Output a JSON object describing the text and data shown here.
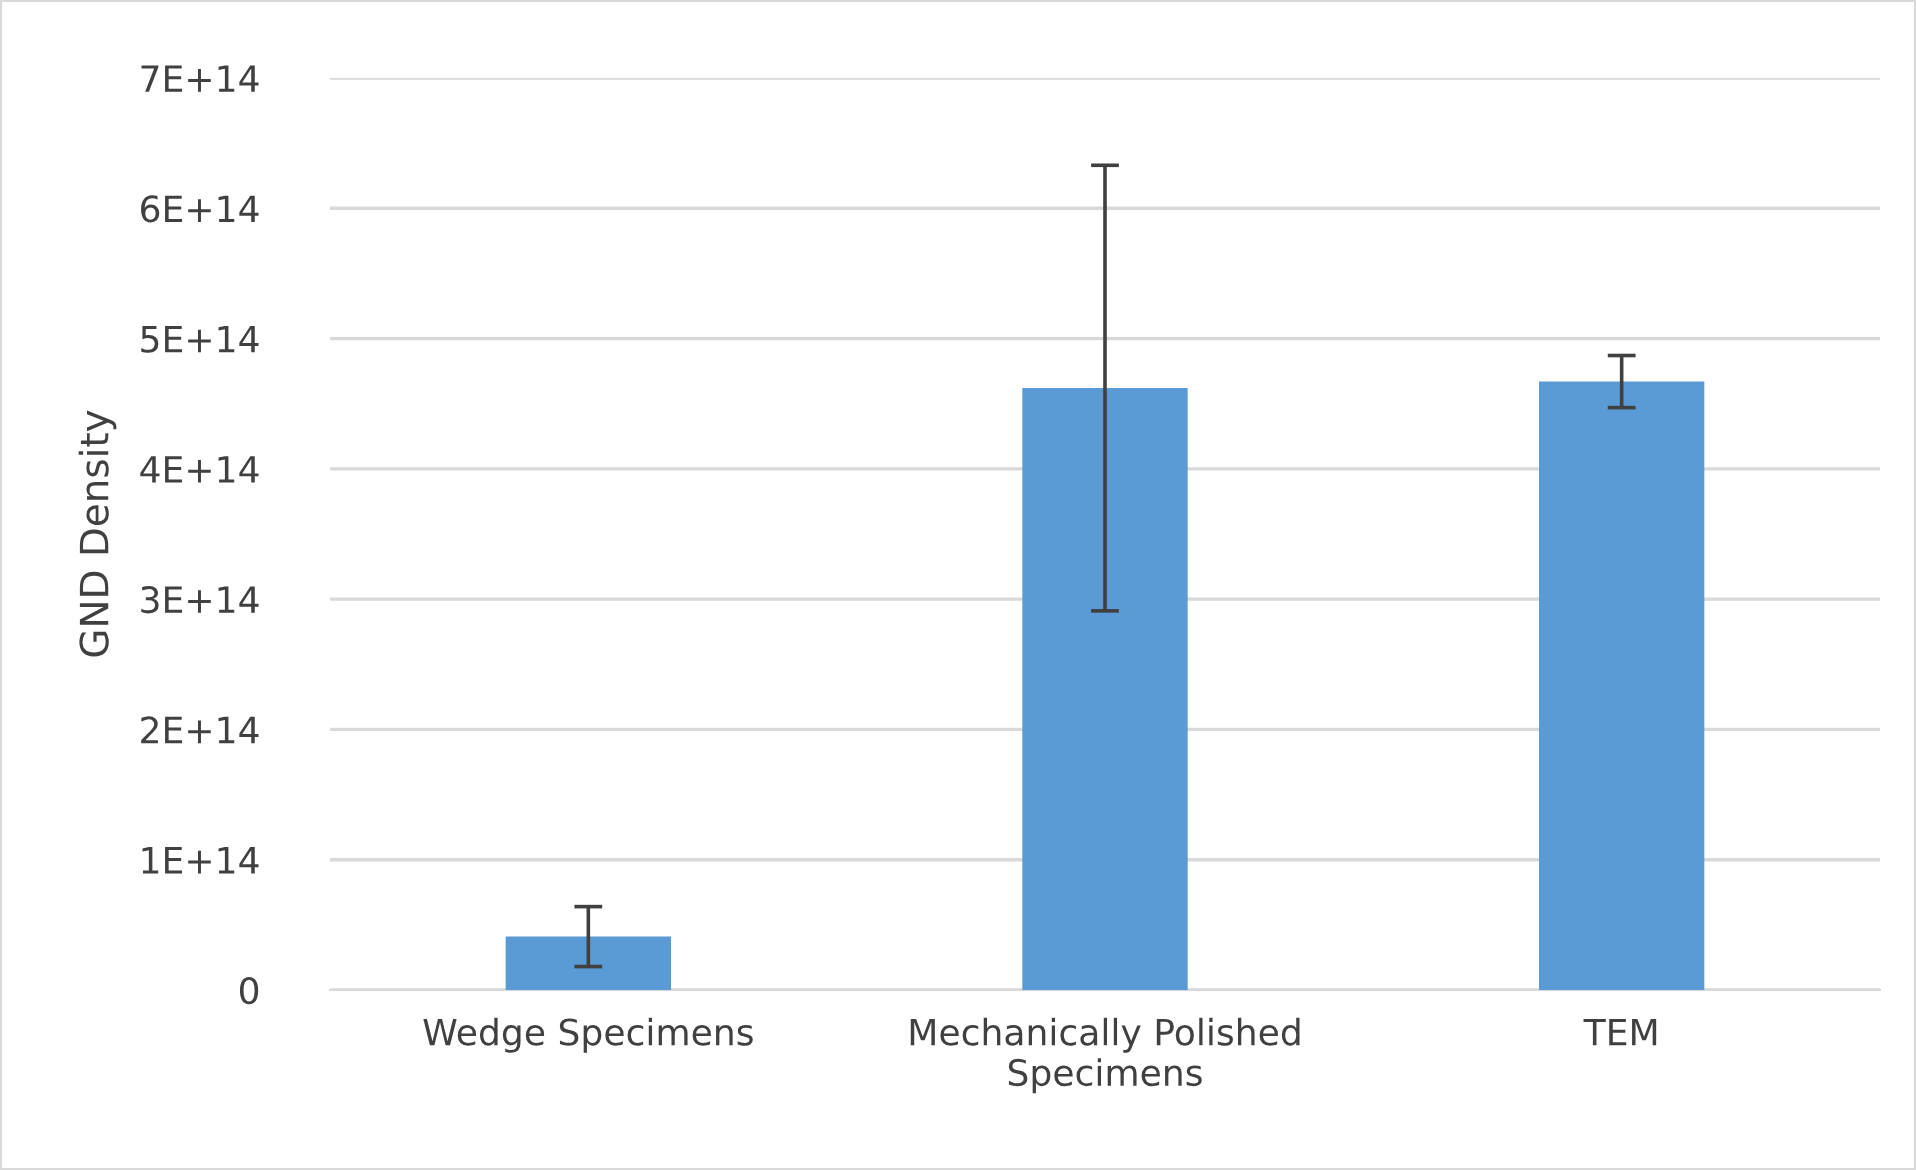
{
  "chart_data": {
    "type": "bar",
    "ylabel": "GND Density",
    "categories": [
      "Wedge Specimens",
      "Mechanically Polished Specimens",
      "TEM"
    ],
    "values": [
      41000000000000.0,
      462000000000000.0,
      467000000000000.0
    ],
    "errors": [
      23000000000000.0,
      171000000000000.0,
      20000000000000.0
    ],
    "color": "#5b9bd5",
    "ylim": [
      0,
      700000000000000.0
    ],
    "yticks": [
      0,
      {
        "value": 100000000000000.0,
        "label": "1E+14"
      },
      {
        "value": 200000000000000.0,
        "label": "2E+14"
      },
      {
        "value": 300000000000000.0,
        "label": "3E+14"
      },
      {
        "value": 400000000000000.0,
        "label": "4E+14"
      },
      {
        "value": 500000000000000.0,
        "label": "5E+14"
      },
      {
        "value": 600000000000000.0,
        "label": "6E+14"
      },
      {
        "value": 700000000000000.0,
        "label": "7E+14"
      }
    ],
    "grid": "y"
  }
}
